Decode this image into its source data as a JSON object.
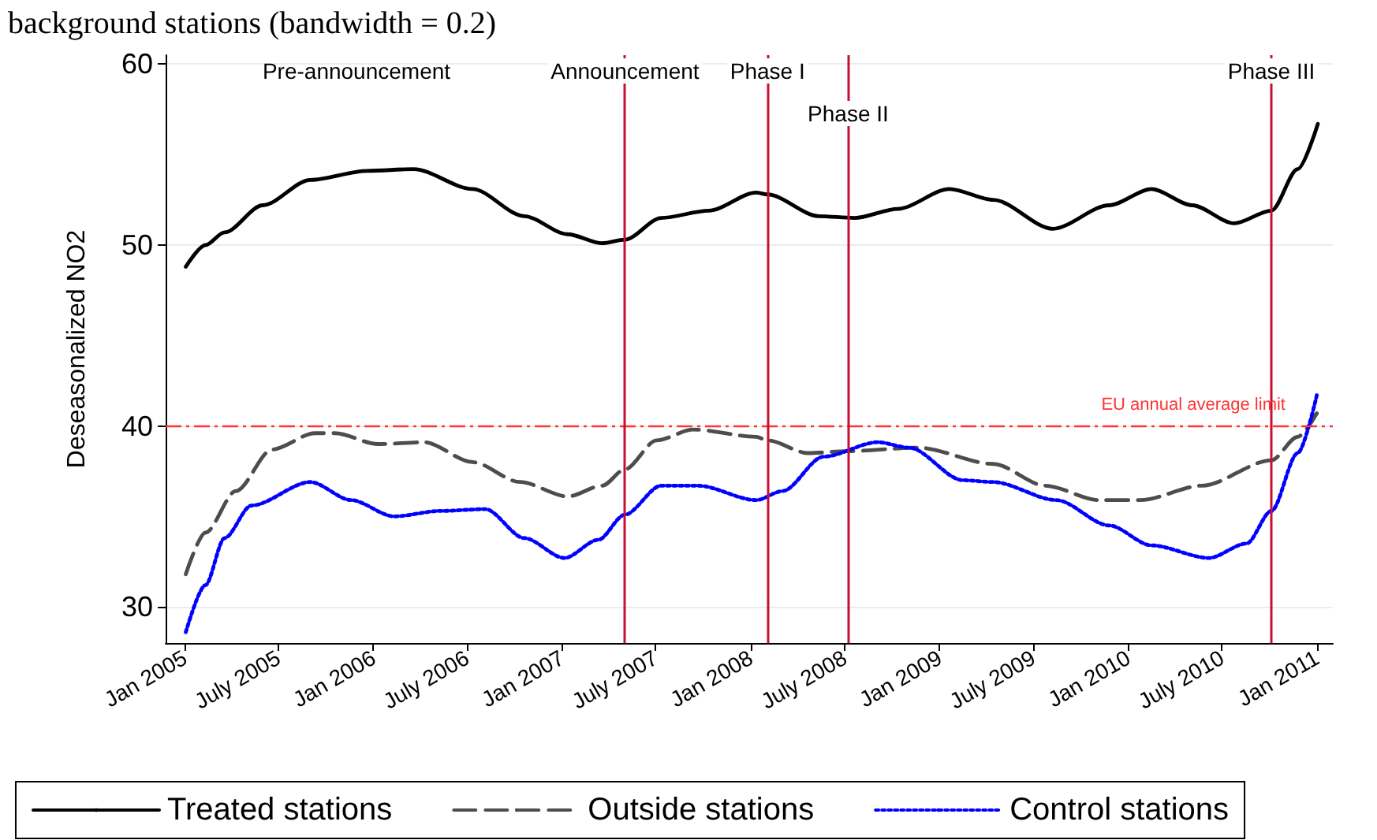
{
  "chart_data": {
    "type": "line",
    "title": "background stations (bandwidth = 0.2)",
    "ylabel": "Deseasonalized NO2",
    "xlim": [
      "2004-11-25",
      "2011-02-01"
    ],
    "ylim": [
      28,
      60.5
    ],
    "xticks": [
      {
        "value": "2005-01-01",
        "label": "Jan 2005"
      },
      {
        "value": "2005-07-01",
        "label": "July 2005"
      },
      {
        "value": "2006-01-01",
        "label": "Jan 2006"
      },
      {
        "value": "2006-07-01",
        "label": "July 2006"
      },
      {
        "value": "2007-01-01",
        "label": "Jan 2007"
      },
      {
        "value": "2007-07-01",
        "label": "July 2007"
      },
      {
        "value": "2008-01-01",
        "label": "Jan 2008"
      },
      {
        "value": "2008-07-01",
        "label": "July 2008"
      },
      {
        "value": "2009-01-01",
        "label": "Jan 2009"
      },
      {
        "value": "2009-07-01",
        "label": "July 2009"
      },
      {
        "value": "2010-01-01",
        "label": "Jan 2010"
      },
      {
        "value": "2010-07-01",
        "label": "July 2010"
      },
      {
        "value": "2011-01-01",
        "label": "Jan 2011"
      }
    ],
    "yticks": [
      30,
      40,
      50,
      60
    ],
    "grid": "y",
    "legend": "bottom",
    "marker": "none",
    "series": [
      {
        "name": "Treated stations",
        "color": "#000000",
        "line_style": "solid",
        "x": [
          "2005-01-03",
          "2005-02-10",
          "2005-03-19",
          "2005-06-01",
          "2005-09-01",
          "2005-12-20",
          "2006-03-20",
          "2006-07-12",
          "2006-10-20",
          "2007-01-12",
          "2007-03-20",
          "2007-05-03",
          "2007-07-12",
          "2007-10-12",
          "2008-01-12",
          "2008-02-03",
          "2008-05-12",
          "2008-07-20",
          "2008-10-12",
          "2009-01-20",
          "2009-04-15",
          "2009-08-08",
          "2009-11-25",
          "2010-02-15",
          "2010-05-05",
          "2010-07-25",
          "2010-10-05",
          "2010-11-25",
          "2011-01-03"
        ],
        "values": [
          48.8,
          50.0,
          50.7,
          52.2,
          53.6,
          54.1,
          54.2,
          53.1,
          51.6,
          50.6,
          50.1,
          50.3,
          51.5,
          51.9,
          52.9,
          52.8,
          51.6,
          51.5,
          52.0,
          53.1,
          52.5,
          50.9,
          52.2,
          53.1,
          52.2,
          51.2,
          51.9,
          54.2,
          56.7
        ]
      },
      {
        "name": "Outside stations",
        "color": "#4d4d4d",
        "line_style": "dashed",
        "x": [
          "2005-01-03",
          "2005-02-10",
          "2005-04-10",
          "2005-06-19",
          "2005-09-10",
          "2005-10-19",
          "2006-01-10",
          "2006-04-10",
          "2006-07-12",
          "2006-10-12",
          "2007-01-12",
          "2007-03-20",
          "2007-05-03",
          "2007-07-03",
          "2007-09-12",
          "2008-01-12",
          "2008-02-03",
          "2008-04-21",
          "2008-07-03",
          "2008-11-21",
          "2009-04-15",
          "2009-07-24",
          "2009-11-06",
          "2010-01-24",
          "2010-05-24",
          "2010-10-05",
          "2010-11-25",
          "2011-01-01"
        ],
        "values": [
          31.8,
          34.1,
          36.4,
          38.7,
          39.6,
          39.6,
          39.0,
          39.1,
          38.0,
          36.9,
          36.1,
          36.7,
          37.6,
          39.2,
          39.8,
          39.4,
          39.2,
          38.5,
          38.6,
          38.8,
          37.9,
          36.7,
          35.9,
          35.9,
          36.7,
          38.1,
          39.4,
          40.7
        ]
      },
      {
        "name": "Control stations",
        "color": "#0000ff",
        "line_style": "dotted",
        "x": [
          "2005-01-03",
          "2005-02-10",
          "2005-03-19",
          "2005-05-10",
          "2005-09-01",
          "2005-11-19",
          "2006-02-10",
          "2006-05-10",
          "2006-08-06",
          "2006-10-20",
          "2007-01-06",
          "2007-03-12",
          "2007-05-03",
          "2007-07-12",
          "2007-09-21",
          "2008-01-12",
          "2008-03-03",
          "2008-05-21",
          "2008-09-03",
          "2008-11-03",
          "2009-02-15",
          "2009-04-15",
          "2009-08-15",
          "2009-11-25",
          "2010-02-15",
          "2010-06-06",
          "2010-08-18",
          "2010-10-05",
          "2010-11-25",
          "2011-01-01"
        ],
        "values": [
          28.6,
          31.2,
          33.8,
          35.6,
          36.9,
          35.9,
          35.0,
          35.3,
          35.4,
          33.8,
          32.7,
          33.7,
          35.1,
          36.7,
          36.7,
          35.9,
          36.4,
          38.3,
          39.1,
          38.8,
          37.0,
          36.9,
          35.9,
          34.5,
          33.4,
          32.7,
          33.5,
          35.3,
          38.5,
          41.7
        ]
      }
    ],
    "ref_lines": [
      {
        "axis": "y",
        "value": 40,
        "label": "EU annual average limit",
        "color": "#ff3333",
        "line_style": "dashed"
      },
      {
        "axis": "x",
        "value": "2007-05-03",
        "label": "Announcement",
        "color": "#c8102e"
      },
      {
        "axis": "x",
        "value": "2008-02-03",
        "label": "Phase I",
        "color": "#c8102e"
      },
      {
        "axis": "x",
        "value": "2008-07-08",
        "label": "Phase II",
        "color": "#c8102e"
      },
      {
        "axis": "x",
        "value": "2010-10-05",
        "label": "Phase III",
        "color": "#c8102e"
      }
    ],
    "annotations": [
      "Pre-announcement"
    ]
  }
}
